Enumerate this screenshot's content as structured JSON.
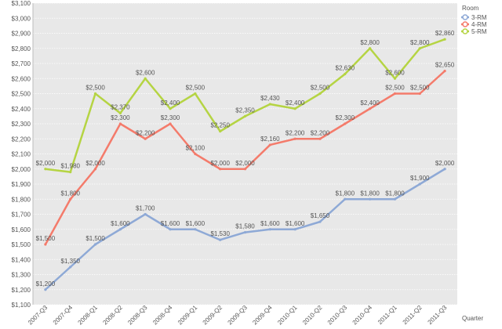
{
  "chart_data": {
    "type": "line",
    "title": "",
    "xlabel": "Quarter",
    "ylabel": "",
    "ylim": [
      1100,
      3100
    ],
    "ytick_step": 100,
    "grid": true,
    "legend_title": "Room",
    "legend_position": "top-right",
    "background": "#e8e8e8",
    "categories": [
      "2007-Q3",
      "2007-Q4",
      "2008-Q1",
      "2008-Q2",
      "2008-Q3",
      "2008-Q4",
      "2009-Q1",
      "2009-Q2",
      "2009-Q3",
      "2009-Q4",
      "2010-Q1",
      "2010-Q2",
      "2010-Q3",
      "2010-Q4",
      "2011-Q1",
      "2011-Q2",
      "2011-Q3"
    ],
    "series": [
      {
        "name": "3-RM",
        "color": "#8ea9d6",
        "values": [
          1200,
          1350,
          1500,
          1600,
          1700,
          1600,
          1600,
          1530,
          1580,
          1600,
          1600,
          1650,
          1800,
          1800,
          1800,
          1900,
          2000
        ],
        "labels": [
          "$1,200",
          "$1,350",
          "$1,500",
          "$1,600",
          "$1,700",
          "$1,600",
          "$1,600",
          "$1,530",
          "$1,580",
          "$1,600",
          "$1,600",
          "$1,650",
          "$1,800",
          "$1,800",
          "$1,800",
          "$1,900",
          "$2,000"
        ]
      },
      {
        "name": "4-RM",
        "color": "#f47b6b",
        "values": [
          1500,
          1800,
          2000,
          2300,
          2200,
          2300,
          2100,
          2000,
          2000,
          2160,
          2200,
          2200,
          2300,
          2400,
          2500,
          2500,
          2650
        ],
        "labels": [
          "$1,500",
          "$1,800",
          "$2,000",
          "$2,300",
          "$2,200",
          "$2,300",
          "$2,100",
          "$2,000",
          "$2,000",
          "$2,160",
          "$2,200",
          "$2,200",
          "$2,300",
          "$2,400",
          "$2,500",
          "$2,500",
          "$2,650"
        ]
      },
      {
        "name": "5-RM",
        "color": "#b5d443",
        "values": [
          2000,
          1980,
          2500,
          2370,
          2600,
          2400,
          2500,
          2250,
          2350,
          2430,
          2400,
          2500,
          2630,
          2800,
          2600,
          2800,
          2860
        ],
        "labels": [
          "$2,000",
          "$1,980",
          "$2,500",
          "$2,370",
          "$2,600",
          "$2,400",
          "$2,500",
          "$2,250",
          "$2,350",
          "$2,430",
          "$2,400",
          "$2,500",
          "$2,630",
          "$2,800",
          "$2,600",
          "$2,800",
          "$2,860"
        ]
      }
    ]
  }
}
